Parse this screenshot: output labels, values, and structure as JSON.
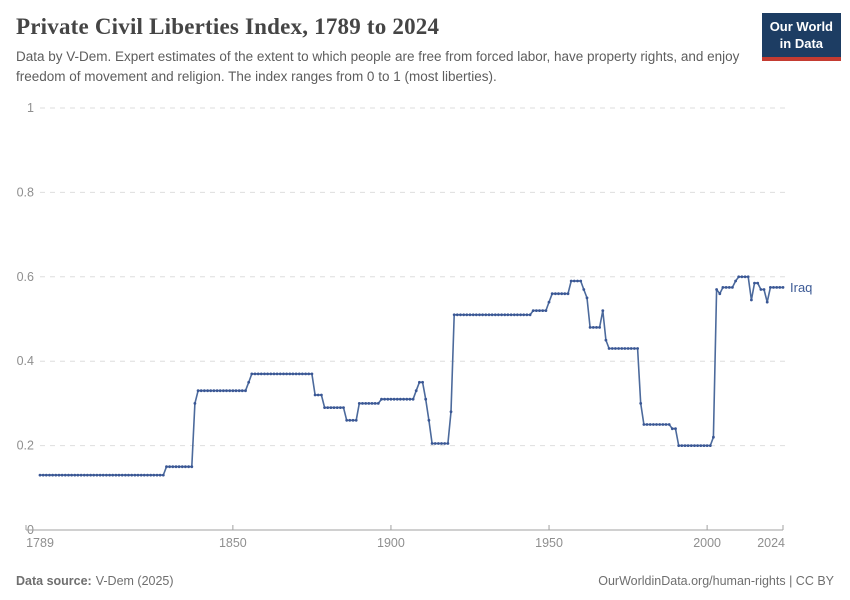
{
  "header": {
    "logo": {
      "line1": "Our World",
      "line2": "in Data"
    }
  },
  "footer": {
    "source_label": "Data source:",
    "source_value": "V-Dem (2025)",
    "credit": "OurWorldinData.org/human-rights | CC BY"
  },
  "colors": {
    "line": "#4c6a9c",
    "point": "#3a5795",
    "entity_label": "#3d5b96",
    "logo_bg": "#1d3d63",
    "logo_bar": "#c43b31",
    "grid": "#dedede",
    "axis": "#a1a1a1",
    "tick_label": "#8f8f8f"
  },
  "chart_data": {
    "type": "line",
    "title": "Private Civil Liberties Index, 1789 to 2024",
    "subtitle": "Data by V-Dem. Expert estimates of the extent to which people are free from forced labor, have property rights, and enjoy freedom of movement and religion. The index ranges from 0 to 1 (most liberties).",
    "xlabel": "",
    "ylabel": "",
    "xlim": [
      1789,
      2024
    ],
    "ylim": [
      0,
      1
    ],
    "x_ticks": [
      1789,
      1850,
      1900,
      1950,
      2000,
      2024
    ],
    "y_ticks": [
      0,
      0.2,
      0.4,
      0.6,
      0.8,
      1
    ],
    "grid": "horizontal-dashed",
    "legend": "line-end-label",
    "series": [
      {
        "name": "Iraq",
        "segments_format": "[year_start, year_end, value] — value constant for each year in range, one data point per year",
        "step_segments": [
          [
            1789,
            1828,
            0.13
          ],
          [
            1829,
            1837,
            0.15
          ],
          [
            1838,
            1838,
            0.3
          ],
          [
            1839,
            1854,
            0.33
          ],
          [
            1855,
            1855,
            0.35
          ],
          [
            1856,
            1875,
            0.37
          ],
          [
            1876,
            1878,
            0.32
          ],
          [
            1879,
            1885,
            0.29
          ],
          [
            1886,
            1889,
            0.26
          ],
          [
            1890,
            1896,
            0.3
          ],
          [
            1897,
            1907,
            0.31
          ],
          [
            1908,
            1908,
            0.33
          ],
          [
            1909,
            1910,
            0.35
          ],
          [
            1911,
            1911,
            0.31
          ],
          [
            1912,
            1912,
            0.26
          ],
          [
            1913,
            1918,
            0.205
          ],
          [
            1919,
            1919,
            0.28
          ],
          [
            1920,
            1944,
            0.51
          ],
          [
            1945,
            1949,
            0.52
          ],
          [
            1950,
            1950,
            0.54
          ],
          [
            1951,
            1956,
            0.56
          ],
          [
            1957,
            1960,
            0.59
          ],
          [
            1961,
            1961,
            0.57
          ],
          [
            1962,
            1962,
            0.55
          ],
          [
            1963,
            1966,
            0.48
          ],
          [
            1967,
            1967,
            0.52
          ],
          [
            1968,
            1968,
            0.45
          ],
          [
            1969,
            1978,
            0.43
          ],
          [
            1979,
            1979,
            0.3
          ],
          [
            1980,
            1988,
            0.25
          ],
          [
            1989,
            1990,
            0.24
          ],
          [
            1991,
            2001,
            0.2
          ],
          [
            2002,
            2002,
            0.22
          ],
          [
            2003,
            2003,
            0.57
          ],
          [
            2004,
            2004,
            0.56
          ],
          [
            2005,
            2008,
            0.575
          ],
          [
            2009,
            2009,
            0.59
          ],
          [
            2010,
            2013,
            0.6
          ],
          [
            2014,
            2014,
            0.545
          ],
          [
            2015,
            2016,
            0.585
          ],
          [
            2017,
            2018,
            0.57
          ],
          [
            2019,
            2019,
            0.54
          ],
          [
            2020,
            2024,
            0.575
          ]
        ]
      }
    ]
  }
}
